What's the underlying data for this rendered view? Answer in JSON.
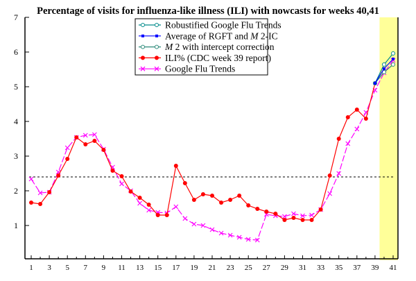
{
  "chart_data": {
    "type": "line",
    "title": "Percentage of visits for influenza-like illness (ILI) with nowcasts for weeks 40,41",
    "xlabel": "",
    "ylabel": "",
    "xlim": [
      0.3,
      41.5
    ],
    "ylim": [
      0,
      7
    ],
    "x_ticks": [
      1,
      3,
      5,
      7,
      9,
      11,
      13,
      15,
      17,
      19,
      21,
      23,
      25,
      27,
      29,
      31,
      33,
      35,
      37,
      39,
      41
    ],
    "y_ticks": [
      1,
      2,
      3,
      4,
      5,
      6,
      7
    ],
    "baseline": {
      "value": 2.4,
      "style": "dashed",
      "color": "#000000"
    },
    "nowcast_band": {
      "from": 39.5,
      "to": 41.5,
      "color": "#ffff99"
    },
    "legend_position": "top-center",
    "series": [
      {
        "name": "Robustified Google Flu Trends",
        "label_parts": [
          {
            "t": "Robustified Google Flu Trends"
          }
        ],
        "color": "#008b8b",
        "marker": "circle",
        "x": [
          39,
          40,
          41
        ],
        "values": [
          5.1,
          5.64,
          5.96
        ]
      },
      {
        "name": "Average of RGFT and M 2-IC",
        "label_parts": [
          {
            "t": "Average of RGFT and "
          },
          {
            "t": "M",
            "i": true
          },
          {
            "t": " 2-IC"
          }
        ],
        "color": "#0000ff",
        "marker": "square",
        "x": [
          39,
          40,
          41
        ],
        "values": [
          5.1,
          5.52,
          5.8
        ]
      },
      {
        "name": "M 2 with intercept correction",
        "label_parts": [
          {
            "t": "M",
            "i": true
          },
          {
            "t": " 2 with intercept correction"
          }
        ],
        "color": "#2e8b7a",
        "marker": "circle",
        "x": [
          39,
          40,
          41
        ],
        "values": [
          5.1,
          5.42,
          5.64
        ]
      },
      {
        "name": "ILI% (CDC week 39 report)",
        "label_parts": [
          {
            "t": "ILI% (CDC week 39 report)"
          }
        ],
        "color": "#ff0000",
        "marker": "dot",
        "x": [
          1,
          2,
          3,
          4,
          5,
          6,
          7,
          8,
          9,
          10,
          11,
          12,
          13,
          14,
          15,
          16,
          17,
          18,
          19,
          20,
          21,
          22,
          23,
          24,
          25,
          26,
          27,
          28,
          29,
          30,
          31,
          32,
          33,
          34,
          35,
          36,
          37,
          38,
          39
        ],
        "values": [
          1.66,
          1.62,
          1.96,
          2.44,
          2.92,
          3.54,
          3.34,
          3.44,
          3.18,
          2.58,
          2.42,
          1.98,
          1.8,
          1.6,
          1.3,
          1.3,
          2.72,
          2.22,
          1.74,
          1.9,
          1.86,
          1.66,
          1.74,
          1.86,
          1.58,
          1.48,
          1.4,
          1.34,
          1.16,
          1.22,
          1.16,
          1.16,
          1.46,
          2.44,
          3.5,
          4.12,
          4.34,
          4.08,
          5.1
        ]
      },
      {
        "name": "Google Flu Trends",
        "label_parts": [
          {
            "t": "Google Flu Trends"
          }
        ],
        "color": "#ff00ff",
        "marker": "x",
        "dashed_segments": true,
        "x": [
          1,
          2,
          3,
          4,
          5,
          6,
          7,
          8,
          9,
          10,
          11,
          12,
          13,
          14,
          15,
          16,
          17,
          18,
          19,
          20,
          21,
          22,
          23,
          24,
          25,
          26,
          27,
          28,
          29,
          30,
          31,
          32,
          33,
          34,
          35,
          36,
          37,
          38,
          39,
          40,
          41
        ],
        "values": [
          2.34,
          1.94,
          1.96,
          2.54,
          3.24,
          3.54,
          3.6,
          3.62,
          3.2,
          2.68,
          2.2,
          2.0,
          1.64,
          1.44,
          1.38,
          1.36,
          1.54,
          1.2,
          1.04,
          1.0,
          0.88,
          0.78,
          0.72,
          0.66,
          0.6,
          0.58,
          1.32,
          1.28,
          1.26,
          1.34,
          1.28,
          1.3,
          1.46,
          1.92,
          2.5,
          3.36,
          3.78,
          4.26,
          4.9,
          5.4,
          5.76
        ]
      }
    ]
  }
}
